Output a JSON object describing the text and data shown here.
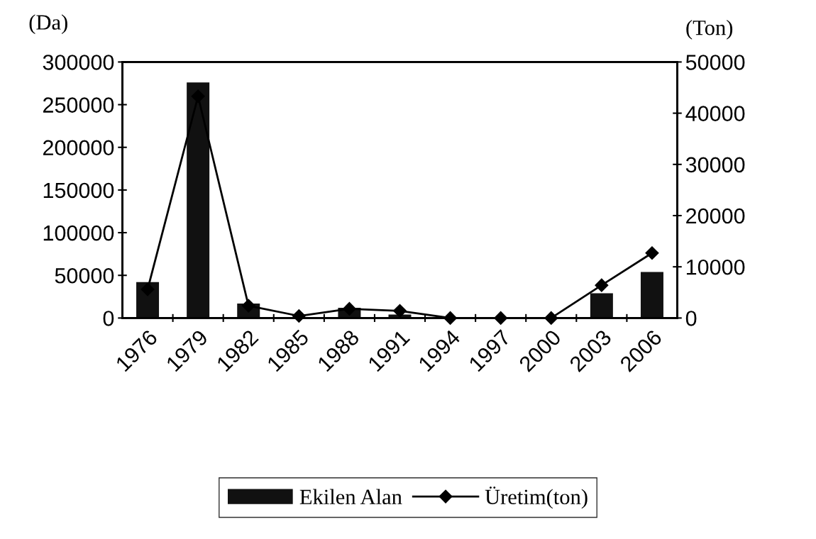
{
  "chart_data": {
    "type": "bar",
    "ylabel": "(Da)",
    "y2label": "(Ton)",
    "categories": [
      "1976",
      "1979",
      "1982",
      "1985",
      "1988",
      "1991",
      "1994",
      "1997",
      "2000",
      "2003",
      "2006"
    ],
    "series": [
      {
        "name": "Ekilen Alan",
        "color": "#111111",
        "values": [
          42000,
          276000,
          17000,
          1000,
          12000,
          4000,
          0,
          0,
          0,
          29000,
          54000
        ]
      },
      {
        "name": "Üretim(ton)",
        "type": "line",
        "axis": "y2",
        "color": "#000000",
        "marker": "diamond",
        "values": [
          5600,
          43300,
          2400,
          400,
          1800,
          1400,
          0,
          0,
          0,
          6400,
          12700
        ]
      }
    ],
    "ylim": [
      0,
      300000
    ],
    "yticks": [
      0,
      50000,
      100000,
      150000,
      200000,
      250000,
      300000
    ],
    "y2lim": [
      0,
      50000
    ],
    "y2ticks": [
      0,
      10000,
      20000,
      30000,
      40000,
      50000
    ],
    "grid": false,
    "legend": "bottom"
  }
}
